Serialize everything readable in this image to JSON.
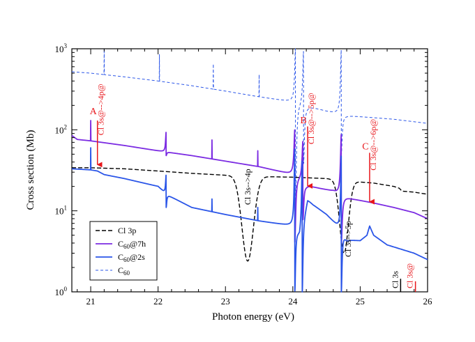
{
  "chart_data": {
    "type": "line",
    "title": "",
    "xlabel": "Photon energy (eV)",
    "ylabel": "Cross section (Mb)",
    "xlim": [
      20.72,
      26.0
    ],
    "ylim": [
      1,
      1000
    ],
    "yscale": "log",
    "x_ticks": [
      21,
      22,
      23,
      24,
      25,
      26
    ],
    "y_ticks": [
      {
        "value": 1,
        "base": "10",
        "exp": "0"
      },
      {
        "value": 10,
        "base": "10",
        "exp": "1"
      },
      {
        "value": 100,
        "base": "10",
        "exp": "2"
      },
      {
        "value": 1000,
        "base": "10",
        "exp": "3"
      }
    ],
    "legend": {
      "placement": "lower-left",
      "entries": [
        {
          "series": 0,
          "label": "Cl 3p",
          "sub": "",
          "tail": ""
        },
        {
          "series": 1,
          "label": "C",
          "sub": "60",
          "tail": "@7h"
        },
        {
          "series": 2,
          "label": "C",
          "sub": "60",
          "tail": "@2s"
        },
        {
          "series": 3,
          "label": "C",
          "sub": "60",
          "tail": ""
        }
      ]
    },
    "series": [
      {
        "name": "Cl 3p",
        "color": "#000000",
        "dash": "6,3",
        "width": 1.4,
        "base": [
          [
            20.72,
            34
          ],
          [
            21.0,
            34
          ],
          [
            21.5,
            33
          ],
          [
            22.0,
            31
          ],
          [
            22.5,
            29
          ],
          [
            23.0,
            27.5
          ],
          [
            23.5,
            26.5
          ],
          [
            24.0,
            26
          ],
          [
            24.5,
            25
          ],
          [
            24.9,
            23
          ],
          [
            25.2,
            22
          ],
          [
            25.5,
            20
          ],
          [
            25.58,
            19
          ],
          [
            25.62,
            17.5
          ],
          [
            25.8,
            17
          ],
          [
            26.0,
            16
          ]
        ],
        "features": [
          {
            "type": "dip",
            "x0": 23.33,
            "w": 0.12,
            "min": 2.4
          },
          {
            "type": "dip",
            "x0": 24.76,
            "w": 0.09,
            "min": 3.0
          }
        ]
      },
      {
        "name": "C60@7h",
        "color": "#7b2be2",
        "dash": "",
        "width": 1.8,
        "base": [
          [
            20.72,
            85
          ],
          [
            20.8,
            76
          ],
          [
            21.0,
            73
          ],
          [
            21.5,
            64
          ],
          [
            22.0,
            55
          ],
          [
            22.5,
            48
          ],
          [
            23.0,
            41
          ],
          [
            23.5,
            35
          ],
          [
            24.0,
            28
          ],
          [
            24.12,
            25
          ],
          [
            24.2,
            21
          ],
          [
            24.4,
            19
          ],
          [
            24.6,
            17.5
          ],
          [
            24.75,
            15
          ],
          [
            24.9,
            14
          ],
          [
            25.2,
            12.5
          ],
          [
            25.5,
            11
          ],
          [
            25.8,
            9.5
          ],
          [
            26.0,
            8
          ]
        ],
        "features": [
          {
            "type": "spike",
            "x0": 21.0,
            "top": 130
          },
          {
            "type": "fano",
            "x0": 22.12,
            "w": 0.01,
            "max": 95,
            "min": 48
          },
          {
            "type": "spike",
            "x0": 22.8,
            "top": 75
          },
          {
            "type": "spike",
            "x0": 23.48,
            "top": 55
          },
          {
            "type": "fano",
            "x0": 24.03,
            "w": 0.015,
            "max": 100,
            "min": 4
          },
          {
            "type": "fano",
            "x0": 24.15,
            "w": 0.015,
            "max": 75,
            "min": 8
          },
          {
            "type": "fano",
            "x0": 24.72,
            "w": 0.015,
            "max": 90,
            "min": 4
          }
        ]
      },
      {
        "name": "C60@2s",
        "color": "#2a55e8",
        "dash": "",
        "width": 1.8,
        "base": [
          [
            20.72,
            33
          ],
          [
            21.0,
            32
          ],
          [
            21.1,
            31
          ],
          [
            21.2,
            28
          ],
          [
            21.5,
            25
          ],
          [
            22.0,
            20
          ],
          [
            22.12,
            16
          ],
          [
            22.5,
            11
          ],
          [
            23.0,
            9
          ],
          [
            23.5,
            7.5
          ],
          [
            24.0,
            6.5
          ],
          [
            24.1,
            5
          ],
          [
            24.22,
            14
          ],
          [
            24.3,
            12
          ],
          [
            24.5,
            9
          ],
          [
            24.7,
            6
          ],
          [
            24.8,
            4.4
          ],
          [
            25.0,
            4.3
          ],
          [
            25.1,
            5.0
          ],
          [
            25.14,
            6.5
          ],
          [
            25.2,
            5
          ],
          [
            25.4,
            3.8
          ],
          [
            25.8,
            3
          ],
          [
            26.0,
            2.5
          ]
        ],
        "features": [
          {
            "type": "spike",
            "x0": 21.0,
            "top": 60
          },
          {
            "type": "fano",
            "x0": 22.12,
            "w": 0.01,
            "max": 28,
            "min": 11
          },
          {
            "type": "spike",
            "x0": 22.8,
            "top": 14
          },
          {
            "type": "spike",
            "x0": 23.48,
            "top": 11
          },
          {
            "type": "fano",
            "x0": 24.03,
            "w": 0.012,
            "max": 60,
            "min": 1
          },
          {
            "type": "fano",
            "x0": 24.14,
            "w": 0.012,
            "max": 45,
            "min": 1
          },
          {
            "type": "fano",
            "x0": 24.72,
            "w": 0.012,
            "max": 50,
            "min": 1
          }
        ]
      },
      {
        "name": "C60",
        "color": "#2a55e8",
        "dash": "4,3",
        "width": 1.0,
        "base": [
          [
            20.72,
            520
          ],
          [
            21.0,
            500
          ],
          [
            21.5,
            450
          ],
          [
            22.0,
            400
          ],
          [
            22.5,
            350
          ],
          [
            23.0,
            300
          ],
          [
            23.5,
            255
          ],
          [
            24.0,
            220
          ],
          [
            24.3,
            190
          ],
          [
            24.5,
            170
          ],
          [
            24.8,
            150
          ],
          [
            25.5,
            135
          ],
          [
            26.0,
            120
          ]
        ],
        "features": [
          {
            "type": "spike",
            "x0": 21.2,
            "top": 1000
          },
          {
            "type": "spike",
            "x0": 22.02,
            "top": 850
          },
          {
            "type": "spike",
            "x0": 22.82,
            "top": 650
          },
          {
            "type": "spike",
            "x0": 23.5,
            "top": 480
          },
          {
            "type": "fano",
            "x0": 24.04,
            "w": 0.015,
            "max": 1000,
            "min": 10
          },
          {
            "type": "fano",
            "x0": 24.16,
            "w": 0.015,
            "max": 1000,
            "min": 40
          },
          {
            "type": "fano",
            "x0": 24.72,
            "w": 0.015,
            "max": 1000,
            "min": 50
          }
        ]
      }
    ],
    "annotations": [
      {
        "letter": "A",
        "text": "Cl 3s@-->4p@",
        "x": 21.1,
        "color": "#e8161b",
        "letter_y": 155,
        "top": 130,
        "tip": 33
      },
      {
        "letter": "B",
        "text": "Cl 3s@-->5p@",
        "x": 24.22,
        "color": "#e8161b",
        "letter_y": 120,
        "top": 110,
        "tip": 18
      },
      {
        "letter": "C",
        "text": "Cl 3s@-->6p@",
        "x": 25.14,
        "color": "#e8161b",
        "letter_y": 57,
        "top": 52,
        "tip": 11.5
      }
    ],
    "side_labels": [
      {
        "text": "Cl 3s-->4p",
        "x": 23.37,
        "y": 33,
        "color": "#000000"
      },
      {
        "text": "Cl 3s-->5p",
        "x": 24.86,
        "y": 7.5,
        "color": "#000000"
      }
    ],
    "threshold_bars": [
      {
        "text": "Cl 3s",
        "x": 25.6,
        "y_top": 1.45,
        "color": "#000000"
      },
      {
        "text": "Cl 3s@",
        "x": 25.82,
        "y_top": 1.35,
        "color": "#e8161b"
      }
    ]
  }
}
